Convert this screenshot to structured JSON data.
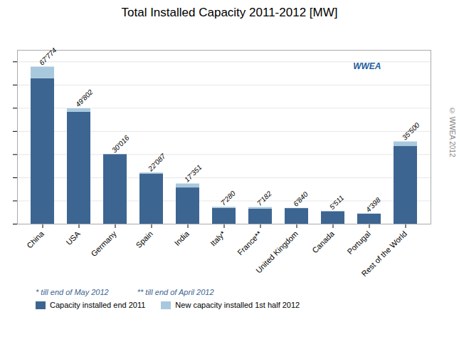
{
  "chart_data": {
    "type": "bar",
    "stacked": true,
    "title": "Total Installed Capacity 2011-2012 [MW]",
    "categories": [
      "China",
      "USA",
      "Germany",
      "Spain",
      "India",
      "Italy*",
      "France**",
      "United Kingdom",
      "Canada",
      "Portugal",
      "Rest of the World"
    ],
    "series": [
      {
        "name": "Capacity installed end 2011",
        "color": "#3d6591",
        "values": [
          62774,
          48302,
          30016,
          21673,
          15651,
          6790,
          6532,
          6740,
          5411,
          4348,
          33500
        ]
      },
      {
        "name": "New capacity installed 1st half 2012",
        "color": "#a8c8de",
        "values": [
          5000,
          1500,
          0,
          414,
          1700,
          490,
          650,
          100,
          100,
          50,
          2000
        ]
      }
    ],
    "totals": [
      67774,
      49802,
      30016,
      22087,
      17351,
      7280,
      7182,
      6840,
      5511,
      4398,
      35500
    ],
    "total_labels": [
      "67'774",
      "49'802",
      "30'016",
      "22'087",
      "17'351",
      "7'280",
      "7'182",
      "6'840",
      "5'511",
      "4'398",
      "35'500"
    ],
    "ylim": [
      0,
      75000
    ],
    "yticks": [
      0,
      10000,
      20000,
      30000,
      40000,
      50000,
      60000,
      70000
    ],
    "tick_labels": "x",
    "grid": true,
    "legend": "bottom",
    "annotations": [
      "* till end of May 2012",
      "** till end of April 2012",
      "© WWEA 2012",
      "WWEA"
    ]
  }
}
